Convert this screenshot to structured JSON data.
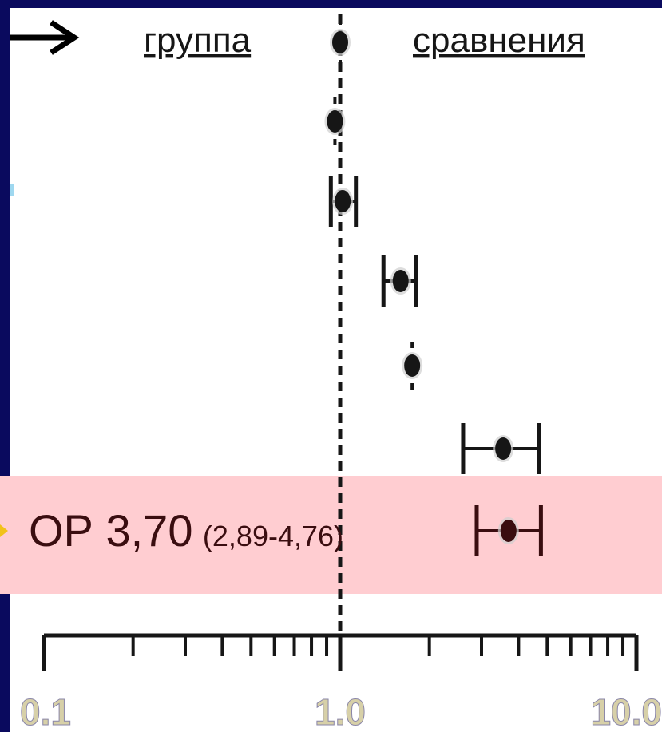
{
  "chart_data": {
    "type": "forest",
    "header": {
      "left_label": "группа",
      "right_label": "сравнения"
    },
    "x_axis": {
      "scale": "log",
      "range": [
        0.1,
        10.0
      ],
      "tick_labels": [
        "0.1",
        "1.0",
        "10.0"
      ]
    },
    "reference_line": 1.0,
    "studies": [
      {
        "or": 1.0,
        "ci": [
          1.0,
          1.0
        ]
      },
      {
        "or": 0.96,
        "ci": [
          0.95,
          0.97
        ]
      },
      {
        "or": 1.02,
        "ci": [
          0.93,
          1.13
        ]
      },
      {
        "or": 1.6,
        "ci": [
          1.4,
          1.8
        ]
      },
      {
        "or": 1.75,
        "ci": [
          1.74,
          1.76
        ]
      },
      {
        "or": 3.55,
        "ci": [
          2.6,
          4.7
        ]
      }
    ],
    "pooled": {
      "or": 3.7,
      "ci": [
        2.89,
        4.76
      ],
      "label_main": "ОР 3,70",
      "label_ci": "(2,89-4,76)"
    }
  },
  "colors": {
    "frame": "#0a0a5e",
    "panel": "#ffffff",
    "highlight": "#ffcdd1",
    "ink": "#161616",
    "pooled_ink": "#3a0d10",
    "arrow": "#000000",
    "tick_label": "#d7d0a8",
    "left_mark": "#9fd8f0",
    "side_arrow": "#f2c21a"
  }
}
